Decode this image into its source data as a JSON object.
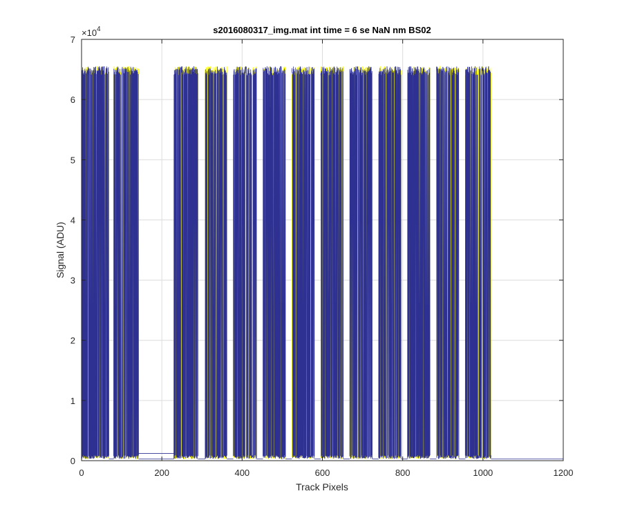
{
  "chart_data": {
    "type": "line",
    "title": "s2016080317_img.mat int time = 6 se  NaN nm BS02",
    "xlabel": "Track Pixels",
    "ylabel": "Signal (ADU)",
    "xlim": [
      0,
      1200
    ],
    "ylim": [
      0,
      70000
    ],
    "xticks": [
      "0",
      "200",
      "400",
      "600",
      "800",
      "1000",
      "1200"
    ],
    "yticks": [
      "0",
      "1",
      "2",
      "3",
      "4",
      "5",
      "6",
      "7"
    ],
    "y_exponent_label": "×10",
    "y_exponent": "4",
    "grid": true,
    "series": [
      {
        "color": "#ffff00"
      },
      {
        "color": "#2e3192"
      }
    ],
    "saturation_level": 65535,
    "baseline_level": 300,
    "blocks": [
      {
        "x_start": 0,
        "x_end": 68
      },
      {
        "x_start": 80,
        "x_end": 142
      },
      {
        "x_start": 230,
        "x_end": 290
      },
      {
        "x_start": 308,
        "x_end": 362
      },
      {
        "x_start": 378,
        "x_end": 436
      },
      {
        "x_start": 452,
        "x_end": 508
      },
      {
        "x_start": 524,
        "x_end": 580
      },
      {
        "x_start": 596,
        "x_end": 652
      },
      {
        "x_start": 668,
        "x_end": 724
      },
      {
        "x_start": 740,
        "x_end": 796
      },
      {
        "x_start": 812,
        "x_end": 868
      },
      {
        "x_start": 884,
        "x_end": 940
      },
      {
        "x_start": 956,
        "x_end": 1020
      }
    ],
    "gap_baseline": {
      "x_start": 142,
      "x_end": 230,
      "y": 1200
    }
  }
}
